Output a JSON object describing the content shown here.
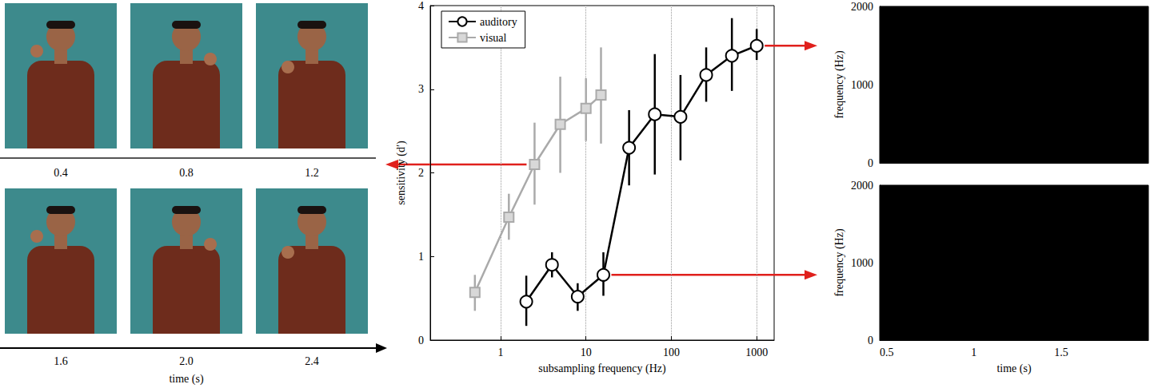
{
  "chart_data": [
    {
      "type": "line",
      "xlabel": "subsampling frequency (Hz)",
      "ylabel": "sensitivity (d′)",
      "log": "x",
      "xlim": [
        0.15,
        1600
      ],
      "xticks": [
        1,
        10,
        100,
        1000
      ],
      "ylim": [
        0,
        4
      ],
      "yticks": [
        0,
        1,
        2,
        3,
        4
      ],
      "grid": true,
      "legend": "top-left",
      "series": [
        {
          "name": "auditory",
          "color": "#000000",
          "marker": "circle",
          "x": [
            2,
            4,
            8,
            16,
            32,
            64,
            128,
            256,
            512,
            1000
          ],
          "values": [
            0.46,
            0.9,
            0.52,
            0.78,
            2.3,
            2.7,
            2.67,
            3.17,
            3.4,
            3.52
          ],
          "errors": [
            [
              0.17,
              0.77
            ],
            [
              0.75,
              1.05
            ],
            [
              0.35,
              0.68
            ],
            [
              0.53,
              1.05
            ],
            [
              1.85,
              2.75
            ],
            [
              1.98,
              3.42
            ],
            [
              2.15,
              3.17
            ],
            [
              2.85,
              3.5
            ],
            [
              2.98,
              3.85
            ],
            [
              3.35,
              3.72
            ]
          ]
        },
        {
          "name": "visual",
          "color": "#aaaaaa",
          "marker": "square",
          "x": [
            0.5,
            1.25,
            2.5,
            5,
            10,
            15
          ],
          "values": [
            0.57,
            1.47,
            2.1,
            2.58,
            2.77,
            2.93
          ],
          "errors": [
            [
              0.35,
              0.78
            ],
            [
              1.2,
              1.75
            ],
            [
              1.62,
              2.6
            ],
            [
              2.0,
              3.15
            ],
            [
              2.38,
              3.13
            ],
            [
              2.35,
              3.5
            ]
          ]
        }
      ]
    },
    {
      "type": "spectrogram",
      "ylabel": "frequency (Hz)",
      "xlim": [
        0.46,
        2.0
      ],
      "xticks": [
        0.5,
        1,
        1.5
      ],
      "ylim": [
        0,
        2000
      ],
      "yticks": [
        0,
        1000,
        2000
      ],
      "tick_labels": "y"
    },
    {
      "type": "spectrogram",
      "xlabel": "time (s)",
      "ylabel": "frequency (Hz)",
      "xlim": [
        0.46,
        2.0
      ],
      "xticks": [
        0.5,
        1,
        1.5
      ],
      "ylim": [
        0,
        2000
      ],
      "yticks": [
        0,
        1000,
        2000
      ]
    }
  ],
  "video_frames": {
    "times": [
      0.4,
      0.8,
      1.2,
      1.6,
      {
        "value": 2,
        "label": "2.0"
      },
      2.4
    ],
    "xlabel": "time (s)"
  }
}
